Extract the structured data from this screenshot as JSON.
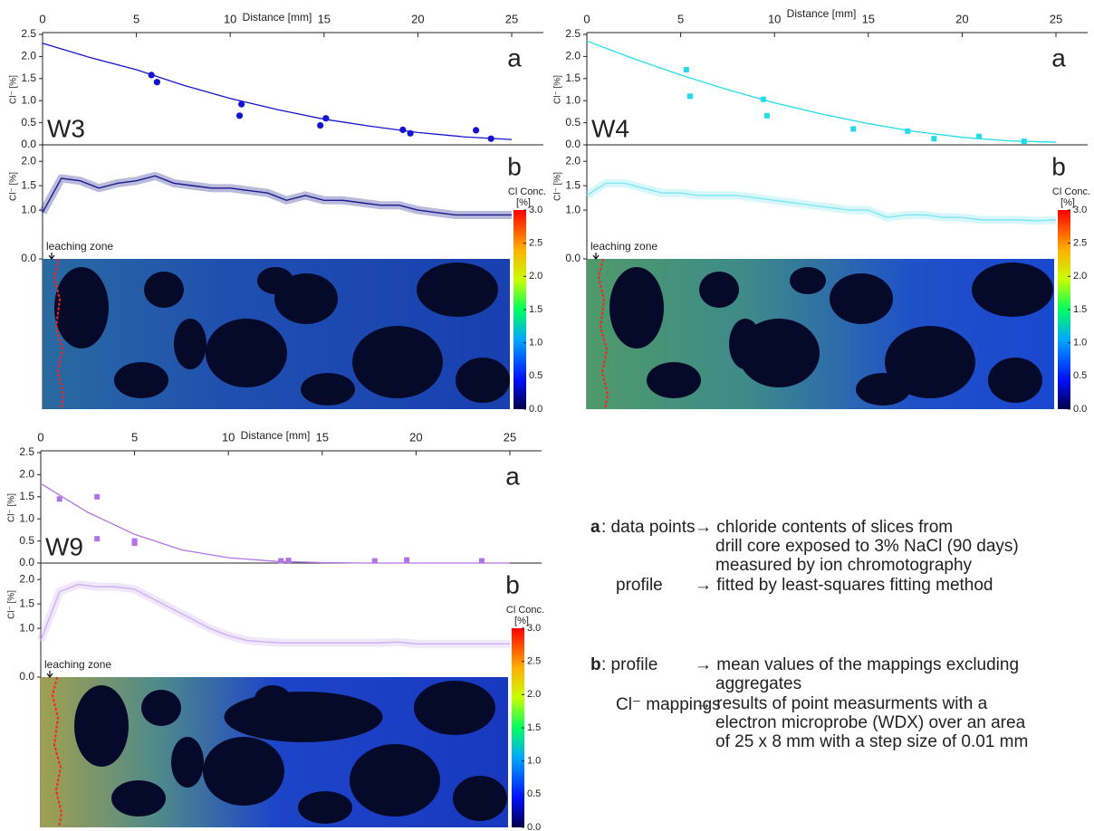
{
  "chart_data": [
    {
      "type": "scatter",
      "sample": "W3",
      "xlabel": "Distance [mm]",
      "xlim": [
        0,
        25
      ],
      "xticks": [
        0,
        5,
        10,
        15,
        20,
        25
      ],
      "marker": "circle",
      "color": "#1515d0",
      "panel_a": {
        "label": "a",
        "ylabel": "Cl⁻ [%]",
        "ylim": [
          0,
          2.5
        ],
        "yticks": [
          {
            "value": 0,
            "label": "0.0"
          },
          0.5,
          {
            "value": 1,
            "label": "1.0"
          },
          1.5,
          {
            "value": 2,
            "label": "2.0"
          },
          2.5
        ],
        "points": {
          "x": [
            5.8,
            6.1,
            10.5,
            10.6,
            14.8,
            15.1,
            19.2,
            19.6,
            23.1,
            23.9
          ],
          "values": [
            1.58,
            1.42,
            0.66,
            0.92,
            0.44,
            0.6,
            0.34,
            0.26,
            0.33,
            0.14
          ]
        },
        "fit": {
          "x": [
            0,
            2.5,
            5,
            7.5,
            10,
            12.5,
            15,
            17.5,
            20,
            22.5,
            25
          ],
          "values": [
            2.3,
            1.98,
            1.7,
            1.35,
            1.05,
            0.8,
            0.58,
            0.42,
            0.28,
            0.18,
            0.12
          ]
        }
      },
      "panel_b": {
        "label": "b",
        "ylabel": "Cl⁻ [%]",
        "ylim": [
          0,
          2.3
        ],
        "color": "#1a1a8c",
        "yticks": [
          {
            "value": 0,
            "label": "0.0"
          },
          {
            "value": 1,
            "label": "1.0"
          },
          1.5,
          {
            "value": 2,
            "label": "2.0"
          }
        ],
        "x": [
          0,
          1,
          2,
          3,
          4,
          5,
          6,
          7,
          8,
          9,
          10,
          11,
          12,
          13,
          14,
          15,
          16,
          17,
          18,
          19,
          20,
          21,
          22,
          23,
          24,
          25
        ],
        "values": [
          0.95,
          1.65,
          1.6,
          1.45,
          1.55,
          1.6,
          1.7,
          1.55,
          1.5,
          1.45,
          1.45,
          1.4,
          1.35,
          1.2,
          1.3,
          1.2,
          1.2,
          1.15,
          1.1,
          1.1,
          1.0,
          0.95,
          0.9,
          0.9,
          0.9,
          0.9
        ]
      },
      "zone_label": "leaching zone",
      "colorbar": {
        "title": "Cl Conc.",
        "unit": "[%]",
        "lim": [
          0,
          3
        ],
        "ticks": [
          {
            "value": 0,
            "label": "0.0"
          },
          0.5,
          {
            "value": 1,
            "label": "1.0"
          },
          1.5,
          {
            "value": 2,
            "label": "2.0"
          },
          2.5,
          {
            "value": 3,
            "label": "3.0"
          }
        ]
      }
    },
    {
      "type": "scatter",
      "sample": "W4",
      "xlabel": "Distance [mm]",
      "xlim": [
        0,
        25
      ],
      "xticks": [
        0,
        5,
        10,
        15,
        20,
        25
      ],
      "marker": "square",
      "color": "#22dde8",
      "panel_a": {
        "label": "a",
        "ylabel": "Cl⁻ [%]",
        "ylim": [
          0,
          2.5
        ],
        "yticks": [
          {
            "value": 0,
            "label": "0.0"
          },
          0.5,
          {
            "value": 1,
            "label": "1.0"
          },
          1.5,
          {
            "value": 2,
            "label": "2.0"
          },
          2.5
        ],
        "points": {
          "x": [
            5.3,
            5.5,
            9.4,
            9.6,
            14.2,
            17.1,
            18.5,
            20.9,
            23.3
          ],
          "values": [
            1.7,
            1.1,
            1.03,
            0.66,
            0.36,
            0.31,
            0.14,
            0.19,
            0.08
          ]
        },
        "fit": {
          "x": [
            0,
            2.5,
            5,
            7.5,
            10,
            12.5,
            15,
            17.5,
            20,
            22.5,
            25
          ],
          "values": [
            2.35,
            1.95,
            1.58,
            1.25,
            0.95,
            0.7,
            0.48,
            0.3,
            0.17,
            0.09,
            0.06
          ]
        }
      },
      "panel_b": {
        "label": "b",
        "ylabel": "Cl⁻ [%]",
        "ylim": [
          0,
          2.3
        ],
        "color": "#7fe6f2",
        "yticks": [
          {
            "value": 0,
            "label": "0.0"
          },
          {
            "value": 1,
            "label": "1.0"
          },
          1.5,
          {
            "value": 2,
            "label": "2.0"
          }
        ],
        "x": [
          0,
          1,
          2,
          3,
          4,
          5,
          6,
          7,
          8,
          9,
          10,
          11,
          12,
          13,
          14,
          15,
          16,
          17,
          18,
          19,
          20,
          21,
          22,
          23,
          24,
          25
        ],
        "values": [
          1.3,
          1.55,
          1.55,
          1.45,
          1.35,
          1.35,
          1.3,
          1.3,
          1.3,
          1.25,
          1.2,
          1.15,
          1.1,
          1.05,
          1.0,
          1.0,
          0.85,
          0.9,
          0.9,
          0.85,
          0.85,
          0.8,
          0.8,
          0.8,
          0.78,
          0.8
        ]
      },
      "zone_label": "leaching zone",
      "colorbar": {
        "title": "Cl Conc.",
        "unit": "[%]",
        "lim": [
          0,
          3
        ],
        "ticks": [
          {
            "value": 0,
            "label": "0.0"
          },
          0.5,
          {
            "value": 1,
            "label": "1.0"
          },
          1.5,
          {
            "value": 2,
            "label": "2.0"
          },
          2.5,
          {
            "value": 3,
            "label": "3.0"
          }
        ]
      }
    },
    {
      "type": "scatter",
      "sample": "W9",
      "xlabel": "Distance [mm]",
      "xlim": [
        0,
        25
      ],
      "xticks": [
        0,
        5,
        10,
        15,
        20,
        25
      ],
      "marker": "square",
      "color": "#b273e6",
      "panel_a": {
        "label": "a",
        "ylabel": "Cl⁻ [%]",
        "ylim": [
          0,
          2.5
        ],
        "yticks": [
          {
            "value": 0,
            "label": "0.0"
          },
          0.5,
          {
            "value": 1,
            "label": "1.0"
          },
          1.5,
          {
            "value": 2,
            "label": "2.0"
          },
          2.5
        ],
        "points": {
          "x": [
            1,
            3,
            3,
            5,
            5,
            12.8,
            13.2,
            17.8,
            19.5,
            23.5
          ],
          "values": [
            1.45,
            1.5,
            0.55,
            0.5,
            0.45,
            0.05,
            0.06,
            0.05,
            0.07,
            0.05
          ]
        },
        "fit": {
          "x": [
            0,
            2.5,
            5,
            7.5,
            10,
            12.5,
            15,
            17.5,
            20,
            22.5,
            25
          ],
          "values": [
            1.8,
            1.15,
            0.65,
            0.3,
            0.12,
            0.04,
            0.01,
            0,
            0,
            0,
            0
          ]
        }
      },
      "panel_b": {
        "label": "b",
        "ylabel": "Cl⁻ [%]",
        "ylim": [
          0,
          2.3
        ],
        "color": "#cdb0f2",
        "yticks": [
          {
            "value": 0,
            "label": "0.0"
          },
          {
            "value": 1,
            "label": "1.0"
          },
          1.5,
          {
            "value": 2,
            "label": "2.0"
          }
        ],
        "x": [
          0,
          1,
          2,
          3,
          4,
          5,
          6,
          7,
          8,
          9,
          10,
          11,
          12,
          13,
          14,
          15,
          16,
          17,
          18,
          19,
          20,
          21,
          22,
          23,
          24,
          25
        ],
        "values": [
          0.75,
          1.75,
          1.9,
          1.85,
          1.85,
          1.8,
          1.6,
          1.4,
          1.2,
          1.0,
          0.85,
          0.75,
          0.72,
          0.7,
          0.7,
          0.7,
          0.7,
          0.7,
          0.7,
          0.72,
          0.68,
          0.68,
          0.68,
          0.68,
          0.68,
          0.68
        ]
      },
      "zone_label": "leaching zone",
      "colorbar": {
        "title": "Cl Conc.",
        "unit": "[%]",
        "lim": [
          0,
          3
        ],
        "ticks": [
          {
            "value": 0,
            "label": "0.0"
          },
          0.5,
          {
            "value": 1,
            "label": "1.0"
          },
          1.5,
          {
            "value": 2,
            "label": "2.0"
          },
          2.5,
          {
            "value": 3,
            "label": "3.0"
          }
        ]
      }
    }
  ],
  "notes": [
    {
      "letter": "a",
      "term": ": data points",
      "desc": [
        "→ chloride contents of slices from",
        "drill core exposed to 3% NaCl (90 days)",
        "measured by ion chromotography"
      ]
    },
    {
      "term": "profile",
      "desc": [
        "→ fitted by least-squares fitting method"
      ]
    },
    {
      "letter": "b",
      "term": ": profile",
      "desc": [
        "→ mean values of the mappings excluding",
        "aggregates"
      ]
    },
    {
      "term": "Cl⁻ mappings",
      "desc": [
        "→ results of point measurments with a",
        "electron microprobe (WDX) over an area",
        "of 25 x 8 mm with a step size of 0.01 mm"
      ]
    }
  ]
}
